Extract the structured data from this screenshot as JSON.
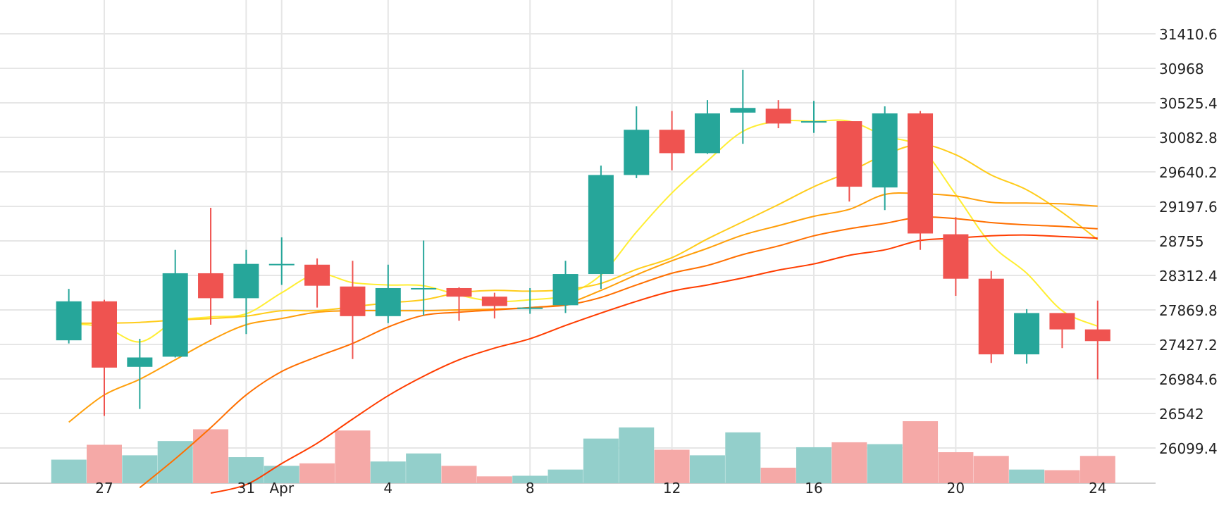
{
  "colors": {
    "up": "#26a69a",
    "down": "#ef5350",
    "up_volume": "#93cfcb",
    "down_volume": "#f5a9a7",
    "grid": "#e6e6e6",
    "background": "#ffffff"
  },
  "chart_data": {
    "type": "candlestick",
    "title": "",
    "xlabel": "",
    "ylabel": "",
    "ylim": [
      25620,
      31900
    ],
    "y_ticks": [
      31410.6,
      30968,
      30525.4,
      30082.8,
      29640.2,
      29197.6,
      28755,
      28312.4,
      27869.8,
      27427.2,
      26984.6,
      26542,
      26099.4
    ],
    "y_tick_labels": [
      "31410.6",
      "30968",
      "30525.4",
      "30082.8",
      "29640.2",
      "29197.6",
      "28755",
      "28312.4",
      "27869.8",
      "27427.2",
      "26984.6",
      "26542",
      "26099.4"
    ],
    "x_ticks": [
      {
        "label": "27",
        "day": 27
      },
      {
        "label": "31",
        "day": 31
      },
      {
        "label": "Apr",
        "day": 32
      },
      {
        "label": "4",
        "day": 35
      },
      {
        "label": "8",
        "day": 39
      },
      {
        "label": "12",
        "day": 43
      },
      {
        "label": "16",
        "day": 47
      },
      {
        "label": "20",
        "day": 51
      },
      {
        "label": "24",
        "day": 55
      }
    ],
    "grid": true,
    "candles": [
      {
        "day": 26,
        "open": 27480,
        "high": 28140,
        "low": 27440,
        "close": 27980
      },
      {
        "day": 27,
        "open": 27980,
        "high": 28000,
        "low": 26510,
        "close": 27130
      },
      {
        "day": 28,
        "open": 27140,
        "high": 27500,
        "low": 26600,
        "close": 27260
      },
      {
        "day": 29,
        "open": 27270,
        "high": 28640,
        "low": 27260,
        "close": 28340
      },
      {
        "day": 30,
        "open": 28340,
        "high": 29180,
        "low": 27680,
        "close": 28020
      },
      {
        "day": 31,
        "open": 28020,
        "high": 28640,
        "low": 27560,
        "close": 28460
      },
      {
        "day": 32,
        "open": 28460,
        "high": 28800,
        "low": 28190,
        "close": 28460
      },
      {
        "day": 33,
        "open": 28450,
        "high": 28530,
        "low": 27900,
        "close": 28180
      },
      {
        "day": 34,
        "open": 28170,
        "high": 28500,
        "low": 27240,
        "close": 27790
      },
      {
        "day": 35,
        "open": 27790,
        "high": 28450,
        "low": 27700,
        "close": 28150
      },
      {
        "day": 36,
        "open": 28150,
        "high": 28760,
        "low": 27800,
        "close": 28150
      },
      {
        "day": 37,
        "open": 28150,
        "high": 28160,
        "low": 27730,
        "close": 28040
      },
      {
        "day": 38,
        "open": 28040,
        "high": 28090,
        "low": 27760,
        "close": 27920
      },
      {
        "day": 39,
        "open": 27900,
        "high": 28150,
        "low": 27820,
        "close": 27900
      },
      {
        "day": 40,
        "open": 27930,
        "high": 28500,
        "low": 27830,
        "close": 28330
      },
      {
        "day": 41,
        "open": 28330,
        "high": 29720,
        "low": 28140,
        "close": 29600
      },
      {
        "day": 42,
        "open": 29600,
        "high": 30480,
        "low": 29560,
        "close": 30180
      },
      {
        "day": 43,
        "open": 30180,
        "high": 30420,
        "low": 29660,
        "close": 29880
      },
      {
        "day": 44,
        "open": 29880,
        "high": 30560,
        "low": 29870,
        "close": 30390
      },
      {
        "day": 45,
        "open": 30400,
        "high": 30950,
        "low": 30000,
        "close": 30460
      },
      {
        "day": 46,
        "open": 30450,
        "high": 30560,
        "low": 30200,
        "close": 30260
      },
      {
        "day": 47,
        "open": 30290,
        "high": 30550,
        "low": 30140,
        "close": 30290
      },
      {
        "day": 48,
        "open": 30290,
        "high": 30290,
        "low": 29260,
        "close": 29450
      },
      {
        "day": 49,
        "open": 29440,
        "high": 30480,
        "low": 29150,
        "close": 30390
      },
      {
        "day": 50,
        "open": 30390,
        "high": 30420,
        "low": 28640,
        "close": 28850
      },
      {
        "day": 51,
        "open": 28840,
        "high": 29060,
        "low": 28050,
        "close": 28270
      },
      {
        "day": 52,
        "open": 28270,
        "high": 28370,
        "low": 27190,
        "close": 27300
      },
      {
        "day": 53,
        "open": 27300,
        "high": 27880,
        "low": 27180,
        "close": 27830
      },
      {
        "day": 54,
        "open": 27830,
        "high": 27830,
        "low": 27380,
        "close": 27620
      },
      {
        "day": 55,
        "open": 27620,
        "high": 27990,
        "low": 26980,
        "close": 27470
      }
    ],
    "volume": [
      0.38,
      0.62,
      0.45,
      0.68,
      0.87,
      0.42,
      0.28,
      0.32,
      0.85,
      0.35,
      0.48,
      0.28,
      0.11,
      0.12,
      0.22,
      0.72,
      0.9,
      0.54,
      0.45,
      0.82,
      0.25,
      0.58,
      0.66,
      0.63,
      1.0,
      0.5,
      0.44,
      0.22,
      0.21,
      0.44
    ],
    "moving_averages": [
      {
        "color": "#ffee33",
        "points": [
          [
            26,
            27690
          ],
          [
            27,
            27650
          ],
          [
            28,
            27460
          ],
          [
            29,
            27720
          ],
          [
            30,
            27780
          ],
          [
            31,
            27820
          ],
          [
            32,
            28090
          ],
          [
            33,
            28330
          ],
          [
            34,
            28220
          ],
          [
            35,
            28190
          ],
          [
            36,
            28180
          ],
          [
            37,
            28060
          ],
          [
            38,
            27980
          ],
          [
            39,
            28000
          ],
          [
            40,
            28060
          ],
          [
            41,
            28320
          ],
          [
            42,
            28870
          ],
          [
            43,
            29370
          ],
          [
            44,
            29780
          ],
          [
            45,
            30160
          ],
          [
            46,
            30290
          ],
          [
            47,
            30290
          ],
          [
            48,
            30290
          ],
          [
            49,
            30100
          ],
          [
            50,
            29950
          ],
          [
            51,
            29350
          ],
          [
            52,
            28710
          ],
          [
            53,
            28340
          ],
          [
            54,
            27860
          ],
          [
            55,
            27660
          ]
        ]
      },
      {
        "color": "#ffcc1a",
        "points": [
          [
            26,
            27700
          ],
          [
            27,
            27700
          ],
          [
            28,
            27710
          ],
          [
            29,
            27740
          ],
          [
            30,
            27760
          ],
          [
            31,
            27790
          ],
          [
            32,
            27860
          ],
          [
            33,
            27860
          ],
          [
            34,
            27910
          ],
          [
            35,
            27960
          ],
          [
            36,
            28000
          ],
          [
            37,
            28090
          ],
          [
            38,
            28120
          ],
          [
            39,
            28110
          ],
          [
            40,
            28130
          ],
          [
            41,
            28210
          ],
          [
            42,
            28390
          ],
          [
            43,
            28540
          ],
          [
            44,
            28780
          ],
          [
            45,
            29000
          ],
          [
            46,
            29220
          ],
          [
            47,
            29450
          ],
          [
            48,
            29640
          ],
          [
            49,
            29860
          ],
          [
            50,
            29990
          ],
          [
            51,
            29860
          ],
          [
            52,
            29600
          ],
          [
            53,
            29410
          ],
          [
            54,
            29120
          ],
          [
            55,
            28770
          ]
        ]
      },
      {
        "color": "#ff9f0a",
        "points": [
          [
            26,
            26430
          ],
          [
            27,
            26780
          ],
          [
            28,
            26980
          ],
          [
            29,
            27230
          ],
          [
            30,
            27480
          ],
          [
            31,
            27680
          ],
          [
            32,
            27760
          ],
          [
            33,
            27840
          ],
          [
            34,
            27860
          ],
          [
            35,
            27860
          ],
          [
            36,
            27860
          ],
          [
            37,
            27870
          ],
          [
            38,
            27880
          ],
          [
            39,
            27900
          ],
          [
            40,
            27950
          ],
          [
            41,
            28120
          ],
          [
            42,
            28320
          ],
          [
            43,
            28500
          ],
          [
            44,
            28660
          ],
          [
            45,
            28830
          ],
          [
            46,
            28950
          ],
          [
            47,
            29070
          ],
          [
            48,
            29160
          ],
          [
            49,
            29350
          ],
          [
            50,
            29360
          ],
          [
            51,
            29330
          ],
          [
            52,
            29250
          ],
          [
            53,
            29240
          ],
          [
            54,
            29230
          ],
          [
            55,
            29200
          ]
        ]
      },
      {
        "color": "#ff6f00",
        "points": [
          [
            28,
            25590
          ],
          [
            29,
            25960
          ],
          [
            30,
            26360
          ],
          [
            31,
            26780
          ],
          [
            32,
            27080
          ],
          [
            33,
            27270
          ],
          [
            34,
            27440
          ],
          [
            35,
            27650
          ],
          [
            36,
            27800
          ],
          [
            37,
            27840
          ],
          [
            38,
            27870
          ],
          [
            39,
            27900
          ],
          [
            40,
            27930
          ],
          [
            41,
            28030
          ],
          [
            42,
            28190
          ],
          [
            43,
            28340
          ],
          [
            44,
            28440
          ],
          [
            45,
            28580
          ],
          [
            46,
            28690
          ],
          [
            47,
            28820
          ],
          [
            48,
            28910
          ],
          [
            49,
            28980
          ],
          [
            50,
            29060
          ],
          [
            51,
            29040
          ],
          [
            52,
            28990
          ],
          [
            53,
            28960
          ],
          [
            54,
            28940
          ],
          [
            55,
            28910
          ]
        ]
      },
      {
        "color": "#ff3d00",
        "points": [
          [
            30,
            25520
          ],
          [
            31,
            25630
          ],
          [
            32,
            25900
          ],
          [
            33,
            26160
          ],
          [
            34,
            26470
          ],
          [
            35,
            26770
          ],
          [
            36,
            27020
          ],
          [
            37,
            27230
          ],
          [
            38,
            27380
          ],
          [
            39,
            27500
          ],
          [
            40,
            27670
          ],
          [
            41,
            27830
          ],
          [
            42,
            27980
          ],
          [
            43,
            28110
          ],
          [
            44,
            28190
          ],
          [
            45,
            28280
          ],
          [
            46,
            28380
          ],
          [
            47,
            28460
          ],
          [
            48,
            28570
          ],
          [
            49,
            28640
          ],
          [
            50,
            28760
          ],
          [
            51,
            28790
          ],
          [
            52,
            28820
          ],
          [
            53,
            28830
          ],
          [
            54,
            28810
          ],
          [
            55,
            28790
          ]
        ]
      }
    ]
  }
}
